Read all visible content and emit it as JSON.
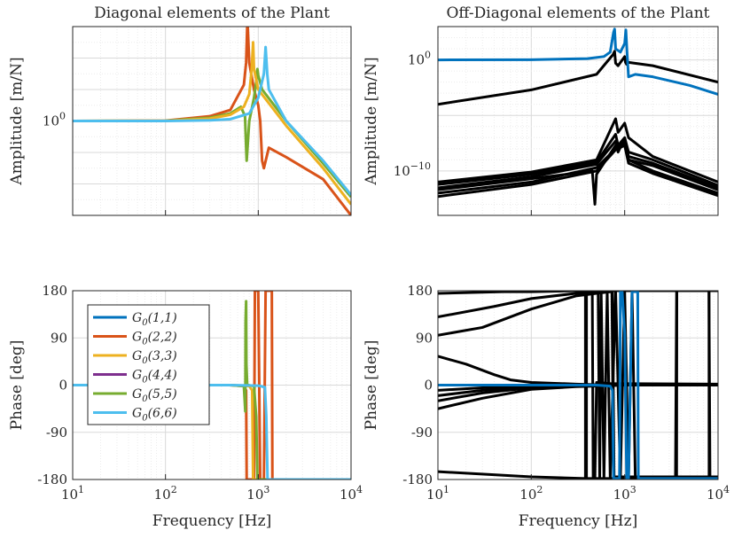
{
  "colors": {
    "G11": "#0072BD",
    "G22": "#D95319",
    "G33": "#EDB120",
    "G44": "#7E2F8E",
    "G55": "#77AC30",
    "G66": "#4DBEEE",
    "offdiag": "#000000"
  },
  "chart_data": [
    {
      "id": "diag-amplitude",
      "type": "line",
      "title": "Diagonal elements of the Plant",
      "xlabel": "",
      "ylabel": "Amplitude [m/N]",
      "xscale": "log",
      "yscale": "log",
      "xlim": [
        10,
        10000
      ],
      "ylim": [
        1e-06,
        1000000.0
      ],
      "yticks": [
        {
          "value": 1,
          "label": "10^0"
        }
      ],
      "xticklabels": false,
      "grid": true,
      "series": [
        {
          "key": "G22",
          "x": [
            10,
            100,
            300,
            500,
            700,
            740,
            760,
            770,
            800,
            900,
            1000,
            1050,
            1100,
            1150,
            1300,
            2000,
            5000,
            10000
          ],
          "y": [
            1,
            1.05,
            2,
            5,
            200,
            5000,
            1000000.0,
            1000000.0,
            5000,
            100,
            10,
            1,
            0.003,
            0.001,
            0.02,
            0.005,
            0.0002,
            1e-06
          ]
        },
        {
          "key": "G55",
          "x": [
            10,
            100,
            300,
            500,
            650,
            720,
            740,
            750,
            800,
            900,
            950,
            980,
            1000,
            1100,
            2000,
            5000,
            10000
          ],
          "y": [
            1,
            1.03,
            1.6,
            3,
            8,
            2,
            0.02,
            0.003,
            1,
            30,
            300,
            2000,
            800,
            100,
            1,
            0.002,
            1.5e-05
          ]
        },
        {
          "key": "G33",
          "x": [
            10,
            100,
            300,
            500,
            700,
            800,
            850,
            880,
            900,
            1000,
            2000,
            5000,
            10000
          ],
          "y": [
            1,
            1.02,
            1.4,
            2.5,
            8,
            50,
            2000,
            100000.0,
            2000,
            100,
            0.5,
            0.001,
            5e-06
          ]
        },
        {
          "key": "G66",
          "x": [
            10,
            100,
            300,
            500,
            800,
            1000,
            1150,
            1200,
            1250,
            1300,
            2000,
            5000,
            10000
          ],
          "y": [
            1,
            1,
            1.1,
            1.3,
            3,
            30,
            1000,
            50000.0,
            1000,
            100,
            1,
            0.003,
            2e-05
          ]
        }
      ]
    },
    {
      "id": "offdiag-amplitude",
      "type": "line",
      "title": "Off-Diagonal elements of the Plant",
      "xlabel": "",
      "ylabel": "Amplitude [m/N]",
      "xscale": "log",
      "yscale": "log",
      "xlim": [
        10,
        10000
      ],
      "ylim": [
        1e-14,
        1000.0
      ],
      "yticks": [
        {
          "value": 1,
          "label": "10^0"
        },
        {
          "value": 1e-10,
          "label": "10^{-10}"
        }
      ],
      "xticklabels": false,
      "grid": true,
      "series": [
        {
          "key": "offdiag",
          "x": [
            10,
            100,
            500,
            750,
            780,
            800,
            850,
            1000,
            1020,
            1050,
            1100,
            2000,
            10000
          ],
          "y": [
            0.0001,
            0.002,
            0.05,
            3,
            6,
            0.5,
            0.3,
            2,
            0.6,
            0.4,
            0.6,
            0.3,
            0.01
          ]
        },
        {
          "key": "offdiag",
          "x": [
            10,
            100,
            500,
            800,
            850,
            1000,
            1100,
            2000,
            10000
          ],
          "y": [
            1e-11,
            8e-11,
            1e-09,
            5e-06,
            3e-07,
            2e-06,
            1e-07,
            2e-09,
            1e-11
          ]
        },
        {
          "key": "offdiag",
          "x": [
            10,
            100,
            500,
            800,
            850,
            1000,
            1100,
            2000,
            10000
          ],
          "y": [
            6e-12,
            5e-11,
            6e-10,
            2e-07,
            2e-08,
            1e-07,
            5e-09,
            1e-09,
            5e-12
          ]
        },
        {
          "key": "offdiag",
          "x": [
            10,
            100,
            500,
            800,
            850,
            1000,
            1100,
            2000,
            10000
          ],
          "y": [
            3e-12,
            3e-11,
            4e-10,
            5e-08,
            5e-09,
            8e-08,
            2e-09,
            5e-10,
            3e-12
          ]
        },
        {
          "key": "offdiag",
          "x": [
            10,
            100,
            450,
            480,
            500,
            800,
            1000,
            1100,
            2000,
            10000
          ],
          "y": [
            2e-12,
            2e-11,
            1e-10,
            1e-13,
            5e-11,
            2e-08,
            3e-08,
            1e-09,
            3e-10,
            2e-12
          ]
        },
        {
          "key": "offdiag",
          "x": [
            10,
            100,
            500,
            800,
            1000,
            1100,
            2000,
            10000
          ],
          "y": [
            1e-12,
            1e-11,
            2e-10,
            1e-08,
            5e-08,
            1e-09,
            1e-10,
            1e-12
          ]
        },
        {
          "key": "offdiag",
          "x": [
            10,
            100,
            500,
            800,
            1000,
            1100,
            2000,
            10000
          ],
          "y": [
            5e-13,
            6e-12,
            1e-10,
            8e-09,
            2e-08,
            5e-10,
            6e-11,
            6e-13
          ]
        },
        {
          "key": "G11",
          "x": [
            10,
            100,
            400,
            600,
            700,
            760,
            780,
            800,
            900,
            1000,
            1030,
            1060,
            1100,
            1300,
            2000,
            5000,
            10000
          ],
          "y": [
            1,
            1.05,
            1.3,
            2,
            5,
            300,
            600,
            10,
            5,
            30,
            500,
            5,
            0.03,
            0.05,
            0.03,
            0.005,
            0.0008
          ]
        }
      ]
    },
    {
      "id": "diag-phase",
      "type": "line",
      "title": "",
      "xlabel": "Frequency [Hz]",
      "ylabel": "Phase [deg]",
      "xscale": "log",
      "yscale": "linear",
      "xlim": [
        10,
        10000
      ],
      "ylim": [
        -180,
        180
      ],
      "yticks": [
        180,
        90,
        0,
        -90,
        -180
      ],
      "grid": true,
      "legend": {
        "placement": "top-left",
        "entries": [
          "G_0(1,1)",
          "G_0(2,2)",
          "G_0(3,3)",
          "G_0(4,4)",
          "G_0(5,5)",
          "G_0(6,6)"
        ]
      },
      "series": [
        {
          "key": "G22",
          "x": [
            10,
            500,
            700,
            740,
            750,
            760,
            770,
            900,
            920,
            950,
            1000,
            1050,
            1150,
            1200,
            1300,
            1400,
            1420,
            10000
          ],
          "y": [
            0,
            0,
            -2,
            -10,
            -180,
            -180,
            -180,
            -180,
            180,
            180,
            180,
            -180,
            -180,
            180,
            180,
            180,
            -180,
            -180
          ]
        },
        {
          "key": "G33",
          "x": [
            10,
            500,
            800,
            860,
            880,
            900,
            10000
          ],
          "y": [
            0,
            0,
            -2,
            -10,
            -180,
            -180,
            -180
          ]
        },
        {
          "key": "G55",
          "x": [
            10,
            500,
            700,
            725,
            730,
            740,
            745,
            760,
            780,
            900,
            950,
            980,
            1000,
            10000
          ],
          "y": [
            0,
            0,
            -2,
            -50,
            120,
            160,
            40,
            0,
            0,
            -2,
            -60,
            -180,
            -180,
            -180
          ]
        },
        {
          "key": "G66",
          "x": [
            10,
            500,
            1000,
            1180,
            1220,
            1260,
            1300,
            10000
          ],
          "y": [
            0,
            0,
            -1,
            -4,
            -60,
            -180,
            -180,
            -180
          ]
        }
      ]
    },
    {
      "id": "offdiag-phase",
      "type": "line",
      "title": "",
      "xlabel": "Frequency [Hz]",
      "ylabel": "Phase [deg]",
      "xscale": "log",
      "yscale": "linear",
      "xlim": [
        10,
        10000
      ],
      "ylim": [
        -180,
        180
      ],
      "yticks": [
        180,
        90,
        0,
        -90,
        -180
      ],
      "grid": true,
      "series": [
        {
          "key": "offdiag",
          "x": [
            10,
            30,
            100,
            300,
            700,
            730,
            760,
            800,
            10000
          ],
          "y": [
            95,
            110,
            145,
            170,
            178,
            178,
            -178,
            -178,
            -178
          ]
        },
        {
          "key": "offdiag",
          "x": [
            10,
            40,
            100,
            300,
            700,
            740,
            770,
            10000
          ],
          "y": [
            130,
            150,
            165,
            175,
            178,
            178,
            -175,
            -175
          ]
        },
        {
          "key": "offdiag",
          "x": [
            10,
            50,
            100,
            300,
            700,
            10000
          ],
          "y": [
            175,
            178,
            178,
            180,
            180,
            180
          ]
        },
        {
          "key": "offdiag",
          "x": [
            10,
            20,
            40,
            60,
            100,
            300,
            700,
            1000,
            10000
          ],
          "y": [
            55,
            40,
            20,
            10,
            5,
            2,
            0,
            0,
            0
          ]
        },
        {
          "key": "offdiag",
          "x": [
            10,
            30,
            100,
            300,
            700,
            1000,
            10000
          ],
          "y": [
            -30,
            -15,
            -5,
            -2,
            0,
            0,
            0
          ]
        },
        {
          "key": "offdiag",
          "x": [
            10,
            30,
            100,
            300,
            700,
            1000,
            10000
          ],
          "y": [
            -20,
            -10,
            -3,
            -1,
            0,
            0,
            0
          ]
        },
        {
          "key": "offdiag",
          "x": [
            10,
            30,
            100,
            300,
            700,
            1000,
            10000
          ],
          "y": [
            -45,
            -25,
            -8,
            -3,
            -1,
            0,
            0
          ]
        },
        {
          "key": "offdiag",
          "x": [
            10,
            30,
            100,
            300,
            700,
            1000,
            10000
          ],
          "y": [
            -10,
            -5,
            -2,
            -1,
            0,
            0,
            0
          ]
        },
        {
          "key": "offdiag",
          "x": [
            10,
            100,
            380,
            400,
            1000,
            1100,
            2000,
            3500,
            3600,
            3700,
            5000,
            8000,
            8200,
            10000
          ],
          "y": [
            -165,
            -175,
            -178,
            -178,
            -178,
            -178,
            -178,
            -178,
            180,
            180,
            180,
            180,
            -178,
            -178
          ]
        },
        {
          "key": "offdiag",
          "x": [
            380,
            380,
            390,
            390
          ],
          "y": [
            -178,
            180,
            180,
            -178
          ]
        },
        {
          "key": "offdiag",
          "x": [
            450,
            460,
            480,
            500,
            700,
            10000
          ],
          "y": [
            180,
            -178,
            -178,
            5,
            3,
            2
          ]
        },
        {
          "key": "offdiag",
          "x": [
            520,
            540,
            560,
            600,
            650,
            700,
            800,
            900,
            1000,
            1100,
            1200,
            1300
          ],
          "y": [
            180,
            -178,
            180,
            -178,
            180,
            -178,
            180,
            -178,
            180,
            -178,
            180,
            -178
          ]
        },
        {
          "key": "offdiag",
          "x": [
            3600,
            3620,
            3640,
            8000,
            8020,
            8040
          ],
          "y": [
            -178,
            180,
            180,
            180,
            -178,
            -178
          ]
        },
        {
          "key": "G11",
          "x": [
            10,
            500,
            700,
            740,
            760,
            780,
            880,
            900,
            940,
            1000,
            1050,
            1100,
            1200,
            1300,
            1380,
            1400,
            10000
          ],
          "y": [
            0,
            0,
            -2,
            -10,
            -178,
            -178,
            -178,
            178,
            178,
            100,
            -178,
            -178,
            178,
            178,
            178,
            -178,
            -178
          ]
        }
      ]
    }
  ]
}
